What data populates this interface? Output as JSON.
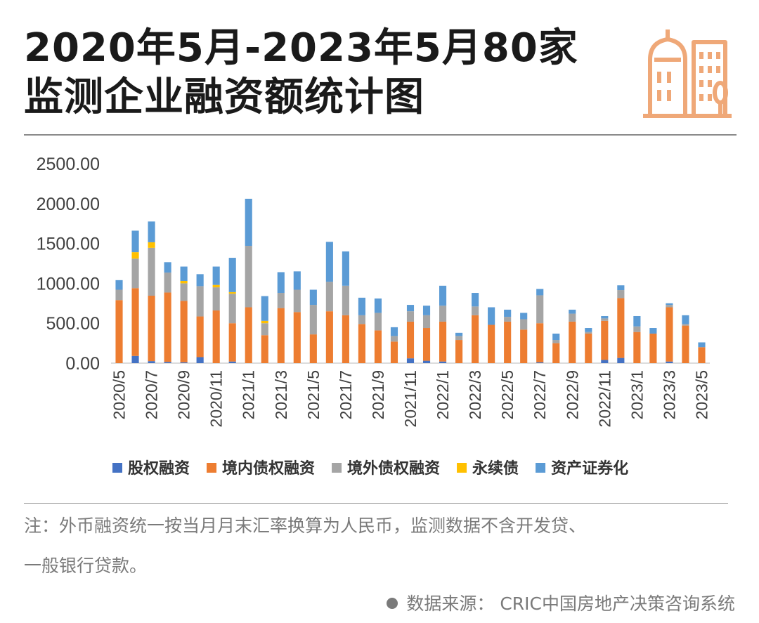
{
  "title": {
    "line1": "2020年5月-2023年5月80家",
    "line2": "监测企业融资额统计图"
  },
  "icons": {
    "logo": "city-buildings-icon"
  },
  "colors": {
    "equity": "#4472C4",
    "domestic_bond": "#ED7D31",
    "overseas_bond": "#A5A5A5",
    "perpetual_bond": "#FFC000",
    "abs": "#5B9BD5",
    "logo": "#EFA878"
  },
  "chart_data": {
    "type": "bar",
    "stacked": true,
    "categories": [
      "2020/5",
      "2020/6",
      "2020/7",
      "2020/8",
      "2020/9",
      "2020/10",
      "2020/11",
      "2020/12",
      "2021/1",
      "2021/2",
      "2021/3",
      "2021/4",
      "2021/5",
      "2021/6",
      "2021/7",
      "2021/8",
      "2021/9",
      "2021/10",
      "2021/11",
      "2021/12",
      "2022/1",
      "2022/2",
      "2022/3",
      "2022/4",
      "2022/5",
      "2022/6",
      "2022/7",
      "2022/8",
      "2022/9",
      "2022/10",
      "2022/11",
      "2022/12",
      "2023/1",
      "2023/2",
      "2023/3",
      "2023/4",
      "2023/5"
    ],
    "tick_labels": [
      "2020/5",
      "2020/7",
      "2020/9",
      "2020/11",
      "2021/1",
      "2021/3",
      "2021/5",
      "2021/7",
      "2021/9",
      "2021/11",
      "2022/1",
      "2022/3",
      "2022/5",
      "2022/7",
      "2022/9",
      "2022/11",
      "2023/1",
      "2023/3",
      "2023/5"
    ],
    "yticks": [
      "0.00",
      "500.00",
      "1000.00",
      "1500.00",
      "2000.00",
      "2500.00"
    ],
    "ylim": [
      0,
      2500
    ],
    "legend_position": "bottom",
    "series": [
      {
        "name": "股权融资",
        "values": [
          0,
          90,
          25,
          15,
          10,
          75,
          0,
          20,
          0,
          0,
          0,
          0,
          0,
          0,
          0,
          0,
          0,
          0,
          60,
          30,
          20,
          0,
          0,
          0,
          0,
          0,
          10,
          0,
          0,
          0,
          40,
          65,
          0,
          0,
          20,
          0,
          0
        ]
      },
      {
        "name": "境内债权融资",
        "values": [
          790,
          850,
          820,
          870,
          770,
          510,
          660,
          480,
          700,
          350,
          690,
          640,
          360,
          650,
          600,
          490,
          410,
          270,
          460,
          410,
          500,
          290,
          600,
          480,
          520,
          420,
          490,
          250,
          520,
          370,
          490,
          750,
          390,
          370,
          680,
          470,
          200
        ]
      },
      {
        "name": "境外债权融资",
        "values": [
          130,
          370,
          600,
          250,
          220,
          380,
          290,
          370,
          770,
          150,
          190,
          280,
          370,
          370,
          370,
          110,
          220,
          70,
          130,
          160,
          200,
          50,
          110,
          0,
          60,
          130,
          350,
          40,
          100,
          20,
          30,
          100,
          70,
          0,
          30,
          20,
          0
        ]
      },
      {
        "name": "永续债",
        "values": [
          0,
          80,
          70,
          0,
          30,
          0,
          30,
          20,
          0,
          30,
          0,
          0,
          0,
          0,
          0,
          0,
          0,
          0,
          0,
          0,
          0,
          0,
          0,
          0,
          0,
          0,
          0,
          0,
          0,
          0,
          0,
          0,
          0,
          0,
          0,
          0,
          0
        ]
      },
      {
        "name": "资产证券化",
        "values": [
          120,
          270,
          260,
          130,
          180,
          150,
          230,
          430,
          590,
          310,
          260,
          230,
          190,
          500,
          430,
          220,
          180,
          110,
          80,
          120,
          250,
          40,
          170,
          220,
          90,
          80,
          80,
          80,
          50,
          50,
          30,
          60,
          130,
          70,
          20,
          110,
          60
        ]
      }
    ]
  },
  "note": {
    "line1": "注：外币融资统一按当月月末汇率换算为人民币，监测数据不含开发贷、",
    "line2": "一般银行贷款。"
  },
  "source": "数据来源： CRIC中国房地产决策咨询系统"
}
